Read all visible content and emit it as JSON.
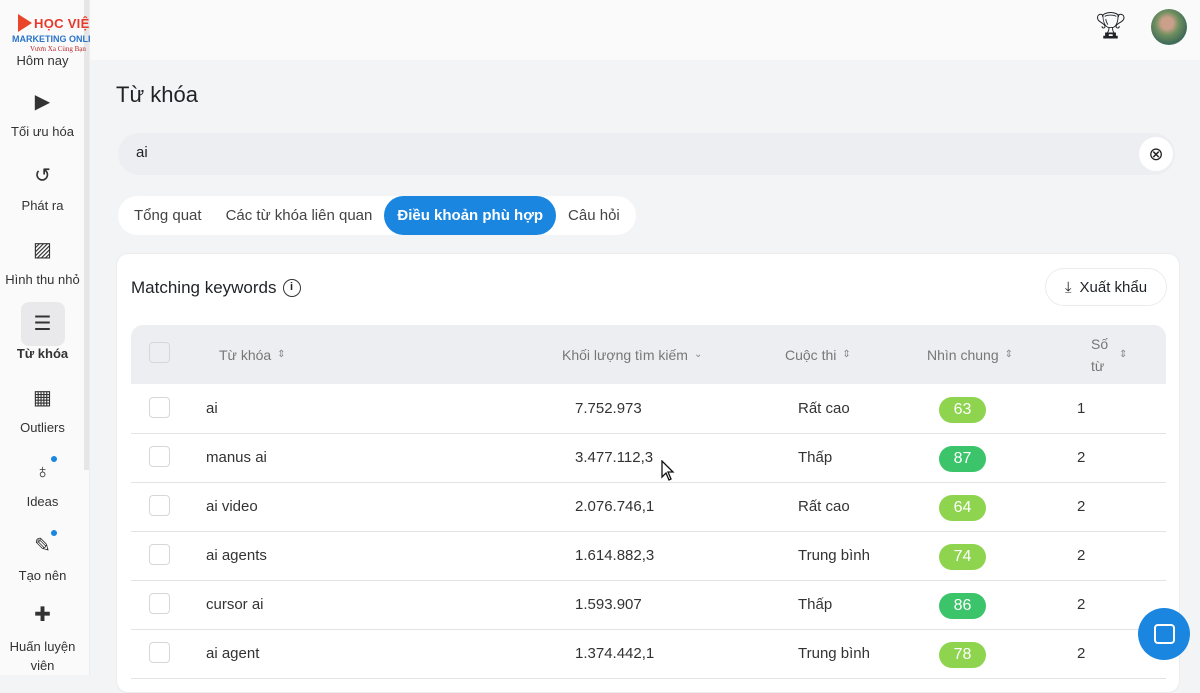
{
  "logo": {
    "line1": "HỌC VIỆN",
    "line2": "MARKETING ONLINE",
    "line3": "Vươn Xa Cùng Bạn"
  },
  "sidebar": {
    "items": [
      {
        "label": "Hôm nay",
        "icon": "home-icon"
      },
      {
        "label": "Tối ưu hóa",
        "icon": "optimize-icon"
      },
      {
        "label": "Phát ra",
        "icon": "history-icon"
      },
      {
        "label": "Hình thu nhỏ",
        "icon": "image-icon"
      },
      {
        "label": "Từ khóa",
        "icon": "keyword-icon",
        "active": true
      },
      {
        "label": "Outliers",
        "icon": "outliers-icon"
      },
      {
        "label": "Ideas",
        "icon": "lightbulb-icon"
      },
      {
        "label": "Tạo nên",
        "icon": "magic-wand-icon"
      },
      {
        "label": "Huấn luyện viên",
        "icon": "coach-icon"
      }
    ]
  },
  "header": {
    "title": "Từ khóa"
  },
  "search": {
    "value": "ai"
  },
  "tabs": [
    "Tổng quat",
    "Các từ khóa liên quan",
    "Điều khoản phù hợp",
    "Câu hỏi"
  ],
  "active_tab": "Điều khoản phù hợp",
  "card": {
    "title": "Matching keywords",
    "export_label": "Xuất khẩu"
  },
  "table": {
    "columns": [
      "Từ khóa",
      "Khối lượng tìm kiếm",
      "Cuộc thi",
      "Nhìn chung",
      "Số từ"
    ],
    "rows": [
      {
        "keyword": "ai",
        "volume": "7.752.973",
        "competition": "Rất cao",
        "overall": "63",
        "words": "1"
      },
      {
        "keyword": "manus ai",
        "volume": "3.477.112,3",
        "competition": "Thấp",
        "overall": "87",
        "words": "2"
      },
      {
        "keyword": "ai video",
        "volume": "2.076.746,1",
        "competition": "Rất cao",
        "overall": "64",
        "words": "2"
      },
      {
        "keyword": "ai agents",
        "volume": "1.614.882,3",
        "competition": "Trung bình",
        "overall": "74",
        "words": "2"
      },
      {
        "keyword": "cursor ai",
        "volume": "1.593.907",
        "competition": "Thấp",
        "overall": "86",
        "words": "2"
      },
      {
        "keyword": "ai agent",
        "volume": "1.374.442,1",
        "competition": "Trung bình",
        "overall": "78",
        "words": "2"
      }
    ]
  },
  "colors": {
    "accent": "#1a86e0",
    "score_high": "#3cc46a",
    "score_mid": "#8ed44f"
  }
}
